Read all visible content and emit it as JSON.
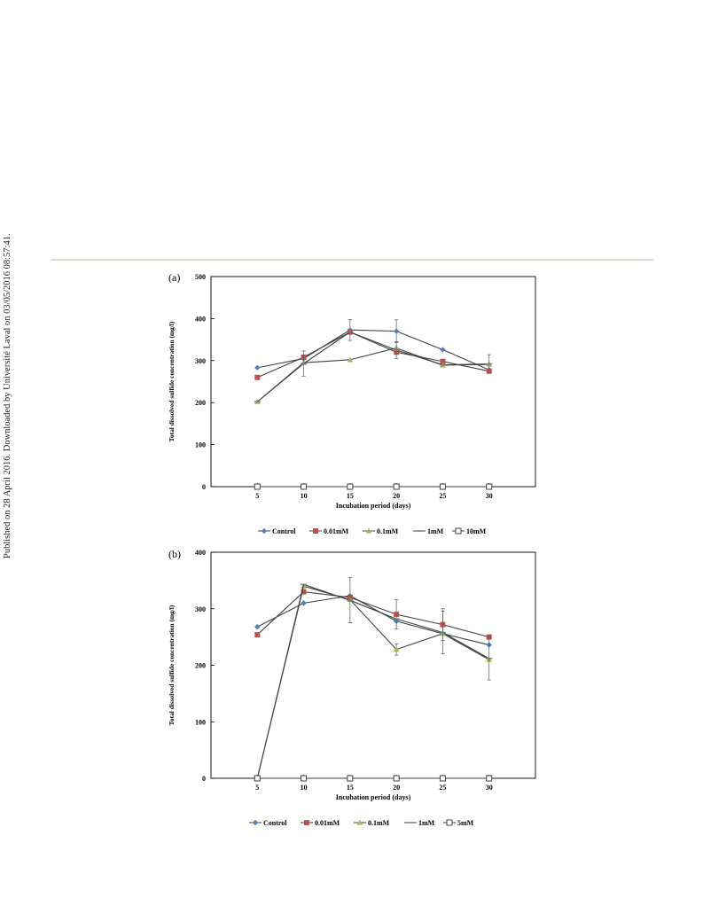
{
  "sidebar_note": "Published on 28 April 2016. Downloaded by Université Laval on 03/05/2016 08:57:41.",
  "colors": {
    "control": "#4f81bd",
    "mM_0_01": "#c0504d",
    "mM_0_1": "#9bbb59",
    "mM_1": "#7f7f7f",
    "high": "#404040",
    "line": "#404040",
    "divider": "#d8dccb"
  },
  "chart_data": [
    {
      "type": "line",
      "panel_label": "(a)",
      "xlabel": "Incubation period (days)",
      "ylabel": "Total dissolved sulfide concentration (mg/l)",
      "x": [
        5,
        10,
        15,
        20,
        25,
        30
      ],
      "xlim": [
        0,
        35
      ],
      "ylim": [
        0,
        500
      ],
      "yticks": [
        0,
        100,
        200,
        300,
        400,
        500
      ],
      "grid": false,
      "legend": "bottom",
      "series": [
        {
          "name": "Control",
          "marker": "diamond",
          "values": [
            283,
            305,
            373,
            370,
            326,
            278
          ],
          "errors": [
            0,
            0,
            25,
            27,
            0,
            0
          ]
        },
        {
          "name": "0.01mM",
          "marker": "square",
          "values": [
            260,
            308,
            368,
            320,
            298,
            275
          ],
          "errors": [
            0,
            0,
            0,
            0,
            0,
            0
          ]
        },
        {
          "name": "0.1mM",
          "marker": "triangle",
          "values": [
            202,
            295,
            302,
            330,
            289,
            291
          ],
          "errors": [
            0,
            0,
            0,
            0,
            0,
            0
          ]
        },
        {
          "name": "1mM",
          "marker": "dash",
          "values": [
            202,
            293,
            368,
            325,
            290,
            292
          ],
          "errors": [
            0,
            30,
            0,
            20,
            0,
            22
          ]
        },
        {
          "name": "10mM",
          "marker": "open-square",
          "values": [
            0,
            0,
            0,
            0,
            0,
            0
          ],
          "errors": [
            0,
            0,
            0,
            0,
            0,
            0
          ]
        }
      ]
    },
    {
      "type": "line",
      "panel_label": "(b)",
      "xlabel": "Incubation period (days)",
      "ylabel": "Total dissolved sulfide concentration (mg/l)",
      "x": [
        5,
        10,
        15,
        20,
        25,
        30
      ],
      "xlim": [
        0,
        35
      ],
      "ylim": [
        0,
        400
      ],
      "yticks": [
        0,
        100,
        200,
        300,
        400
      ],
      "grid": false,
      "legend": "bottom",
      "series": [
        {
          "name": "Control",
          "marker": "diamond",
          "values": [
            268,
            310,
            323,
            278,
            256,
            236
          ],
          "errors": [
            0,
            0,
            0,
            0,
            0,
            0
          ]
        },
        {
          "name": "0.01mM",
          "marker": "square",
          "values": [
            254,
            330,
            320,
            290,
            272,
            250
          ],
          "errors": [
            0,
            0,
            0,
            26,
            28,
            0
          ]
        },
        {
          "name": "0.1mM",
          "marker": "triangle",
          "values": [
            0,
            340,
            316,
            228,
            256,
            210
          ],
          "errors": [
            0,
            0,
            0,
            10,
            0,
            0
          ]
        },
        {
          "name": "1mM",
          "marker": "dash",
          "values": [
            0,
            343,
            315,
            282,
            258,
            212
          ],
          "errors": [
            0,
            0,
            40,
            0,
            38,
            38
          ]
        },
        {
          "name": "5mM",
          "marker": "open-square",
          "values": [
            0,
            0,
            0,
            0,
            0,
            0
          ],
          "errors": [
            0,
            0,
            0,
            0,
            0,
            0
          ]
        }
      ]
    }
  ]
}
